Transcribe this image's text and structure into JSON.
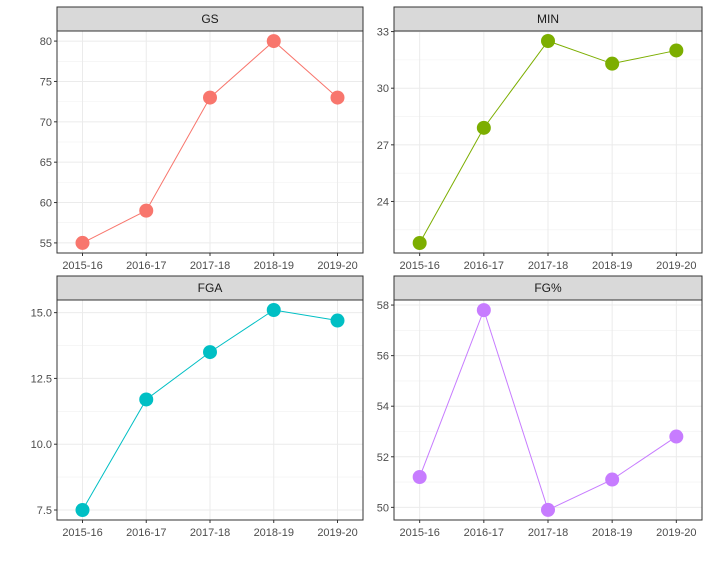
{
  "chart_data": [
    {
      "type": "line",
      "title": "GS",
      "categories": [
        "2015-16",
        "2016-17",
        "2017-18",
        "2018-19",
        "2019-20"
      ],
      "values": [
        55,
        59,
        73,
        80,
        73
      ],
      "yticks": [
        "55",
        "60",
        "65",
        "70",
        "75",
        "80"
      ],
      "ylim": [
        53.75,
        81.25
      ],
      "color": "#F8766D",
      "grid": true
    },
    {
      "type": "line",
      "title": "MIN",
      "categories": [
        "2015-16",
        "2016-17",
        "2017-18",
        "2018-19",
        "2019-20"
      ],
      "values": [
        21.8,
        27.9,
        32.5,
        31.3,
        32.0
      ],
      "yticks": [
        "24",
        "27",
        "30",
        "33"
      ],
      "ylim": [
        21.27,
        33.03
      ],
      "color": "#7CAE00",
      "grid": true
    },
    {
      "type": "line",
      "title": "FGA",
      "categories": [
        "2015-16",
        "2016-17",
        "2017-18",
        "2018-19",
        "2019-20"
      ],
      "values": [
        7.5,
        11.7,
        13.5,
        15.1,
        14.7
      ],
      "yticks": [
        "7.5",
        "10.0",
        "12.5",
        "15.0"
      ],
      "ylim": [
        7.12,
        15.48
      ],
      "color": "#00BFC4",
      "grid": true
    },
    {
      "type": "line",
      "title": "FG%",
      "categories": [
        "2015-16",
        "2016-17",
        "2017-18",
        "2018-19",
        "2019-20"
      ],
      "values": [
        51.2,
        57.8,
        49.9,
        51.1,
        52.8
      ],
      "yticks": [
        "50",
        "52",
        "54",
        "56",
        "58"
      ],
      "ylim": [
        49.5,
        58.2
      ],
      "color": "#C77CFF",
      "grid": true
    }
  ]
}
